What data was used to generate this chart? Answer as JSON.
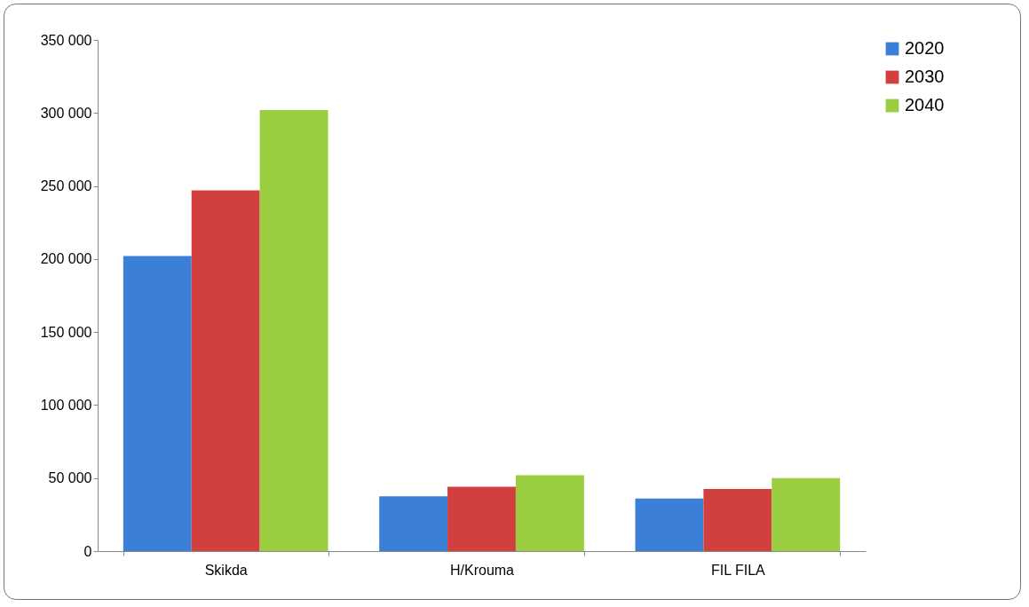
{
  "chart_data": {
    "type": "bar",
    "categories": [
      "Skikda",
      "H/Krouma",
      "FIL FILA"
    ],
    "series": [
      {
        "name": "2020",
        "color": "#3c7fd6",
        "values": [
          202000,
          37500,
          36000
        ]
      },
      {
        "name": "2030",
        "color": "#d23f3f",
        "values": [
          247000,
          44000,
          42500
        ]
      },
      {
        "name": "2040",
        "color": "#9acd3f",
        "values": [
          302000,
          52000,
          50000
        ]
      }
    ],
    "ylim": [
      0,
      350000
    ],
    "yticks": [
      {
        "value": 0,
        "label": "0"
      },
      {
        "value": 50000,
        "label": "50 000"
      },
      {
        "value": 100000,
        "label": "100 000"
      },
      {
        "value": 150000,
        "label": "150 000"
      },
      {
        "value": 200000,
        "label": "200 000"
      },
      {
        "value": 250000,
        "label": "250 000"
      },
      {
        "value": 300000,
        "label": "300 000"
      },
      {
        "value": 350000,
        "label": "350 000"
      }
    ],
    "grid": false,
    "legend": "right"
  }
}
